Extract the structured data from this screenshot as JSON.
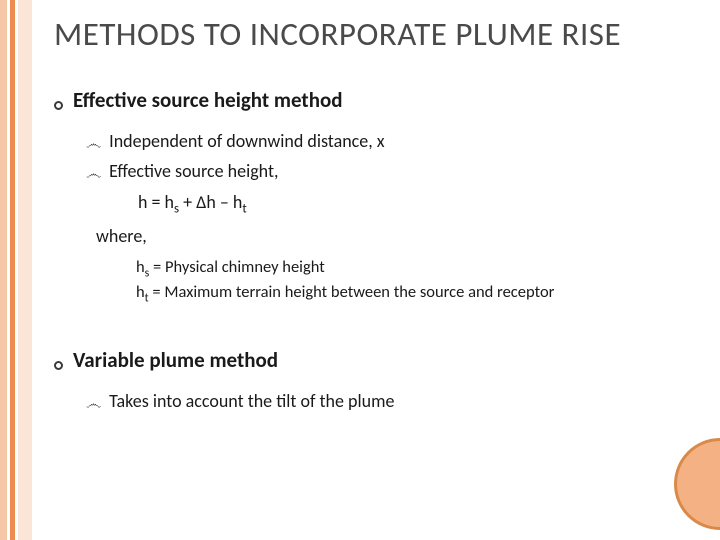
{
  "colors": {
    "stripe1": "#f5c7a7",
    "stripe1_w": 7,
    "stripe2": "#ffffff",
    "stripe2_w": 3,
    "stripe3": "#ee8b4e",
    "stripe3_w": 5,
    "stripe4": "#ffffff",
    "stripe4_w": 3,
    "stripe5": "#fbe5d6",
    "stripe5_w": 14,
    "circle_fill": "#f4b183",
    "circle_border": "#d98a4a"
  },
  "title": "METHODS TO INCORPORATE PLUME RISE",
  "section1": {
    "heading": "Effective source height method",
    "point1": "Independent of downwind distance, x",
    "point2": "Effective source height,",
    "equation_prefix": "h = h",
    "equation_sub1": "s",
    "equation_mid": " + ∆h – h",
    "equation_sub2": "t",
    "where": "where,",
    "def1_pre": "h",
    "def1_sub": "s",
    "def1_post": " = Physical chimney height",
    "def2_pre": " h",
    "def2_sub": "t",
    "def2_post": " = Maximum terrain height between the source and receptor"
  },
  "section2": {
    "heading": "Variable plume method",
    "point1": "Takes into account the tilt of the plume"
  }
}
